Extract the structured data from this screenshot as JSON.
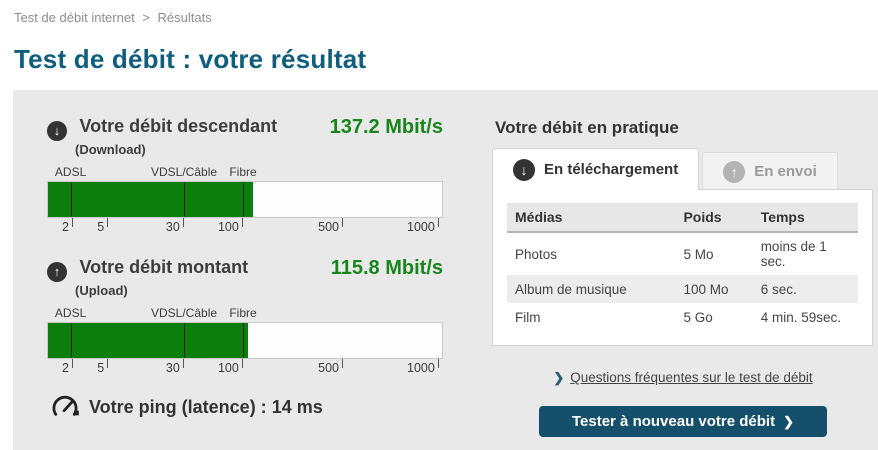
{
  "breadcrumb": {
    "home": "Test de débit internet",
    "separator": ">",
    "current": "Résultats"
  },
  "page_title": "Test de débit : votre résultat",
  "colors": {
    "title_teal": "#0f5e7e",
    "button_teal": "#14506b",
    "speed_green": "#0c7e0c",
    "value_green": "#17871b",
    "panel_gray": "#e9e9e9"
  },
  "download": {
    "label": "Votre débit descendant",
    "sublabel": "(Download)",
    "value": "137.2 Mbit/s",
    "icon": "arrow-down-circle",
    "icon_glyph": "↓",
    "fill_percent": 52.0
  },
  "upload": {
    "label": "Votre débit montant",
    "sublabel": "(Upload)",
    "value": "115.8 Mbit/s",
    "icon": "arrow-up-circle",
    "icon_glyph": "↑",
    "fill_percent": 50.8
  },
  "gauge": {
    "scale_unit": "Mbit/s",
    "zone_labels": [
      {
        "text": "ADSL"
      },
      {
        "text": "VDSL/Câble"
      },
      {
        "text": "Fibre"
      }
    ],
    "ticks": [
      {
        "label": "2"
      },
      {
        "label": "5"
      },
      {
        "label": "30"
      },
      {
        "label": "100"
      },
      {
        "label": "500"
      },
      {
        "label": "1000"
      }
    ]
  },
  "ping": {
    "label": "Votre ping (latence) :",
    "value": "14 ms",
    "icon": "speedometer"
  },
  "practice": {
    "title": "Votre débit en pratique",
    "tabs": [
      {
        "label": "En téléchargement",
        "icon_glyph": "↓",
        "active": true
      },
      {
        "label": "En envoi",
        "icon_glyph": "↑",
        "active": false
      }
    ],
    "table": {
      "headers": [
        "Médias",
        "Poids",
        "Temps"
      ],
      "rows": [
        {
          "media": "Photos",
          "poids": "5 Mo",
          "temps": "moins de 1 sec."
        },
        {
          "media": "Album de musique",
          "poids": "100 Mo",
          "temps": "6 sec."
        },
        {
          "media": "Film",
          "poids": "5 Go",
          "temps": "4 min. 59sec."
        }
      ]
    },
    "faq_link": "Questions fréquentes sur le test de débit",
    "faq_chevron": "❯",
    "retest_button": "Tester à nouveau votre débit",
    "retest_chevron": "❯"
  }
}
